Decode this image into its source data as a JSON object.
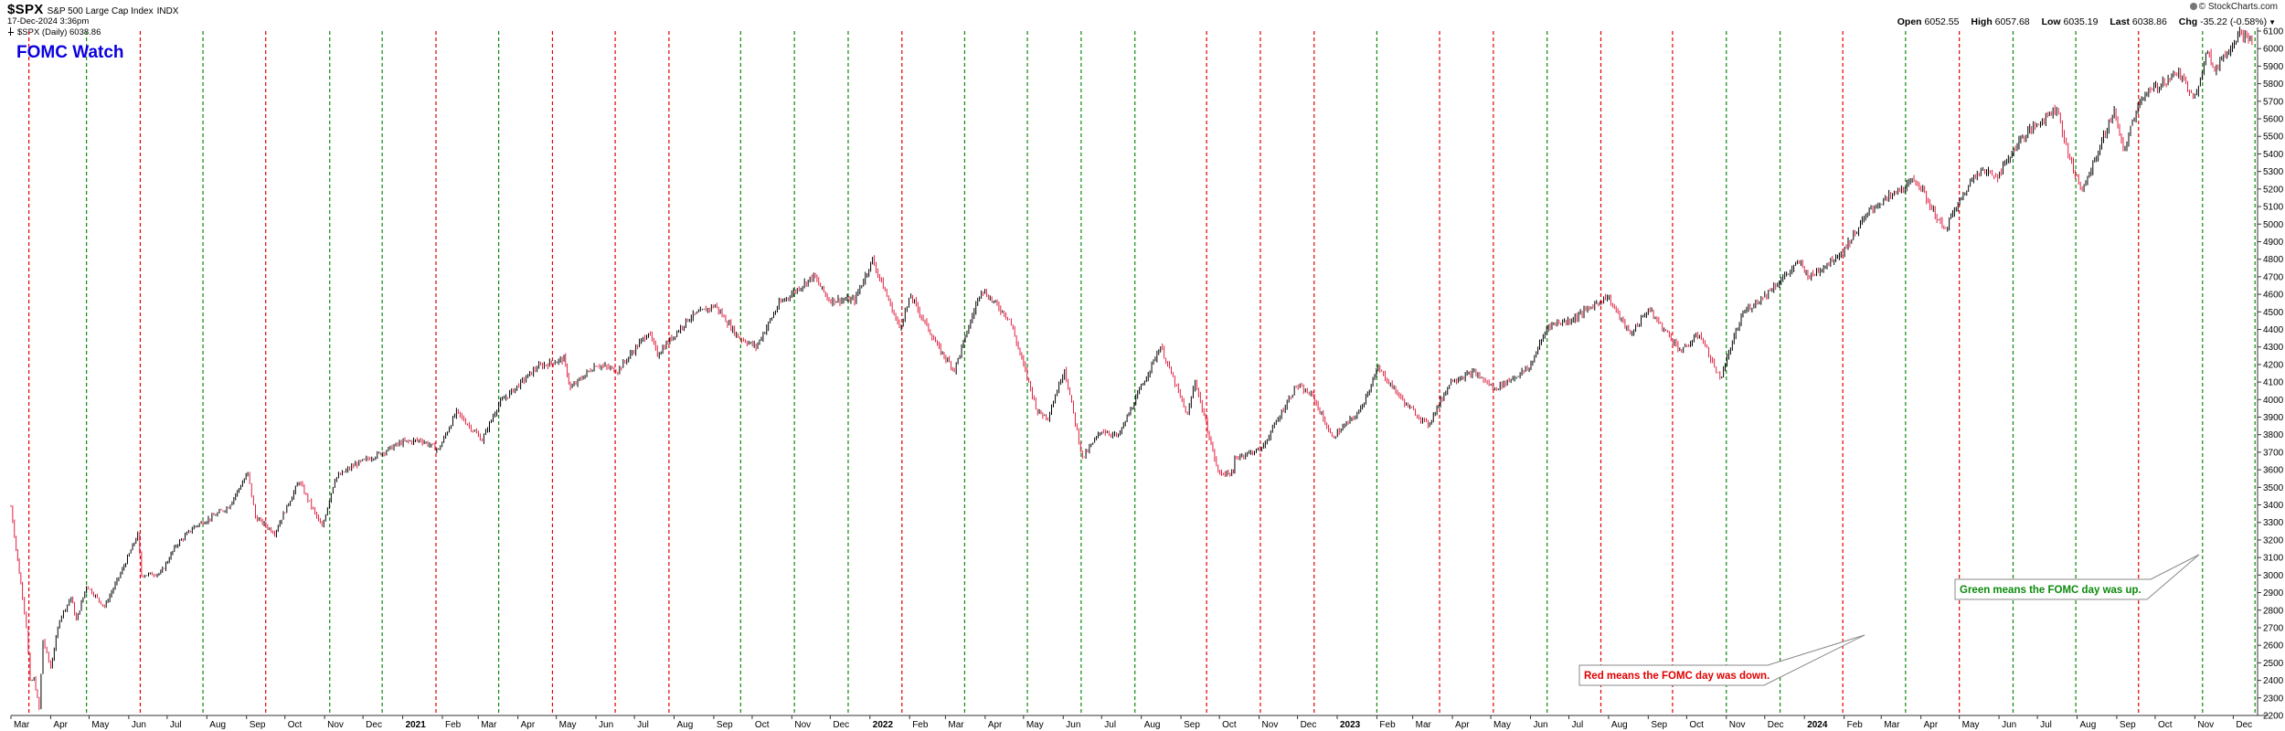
{
  "header": {
    "symbol": "$SPX",
    "description": "S&P 500 Large Cap Index",
    "exchange": "INDX",
    "datetime": "17-Dec-2024 3:36pm",
    "legend": "$SPX (Daily) 6038.86",
    "credit": "© StockCharts.com",
    "quote": {
      "open_label": "Open",
      "open": "6052.55",
      "high_label": "High",
      "high": "6057.68",
      "low_label": "Low",
      "low": "6035.19",
      "last_label": "Last",
      "last": "6038.86",
      "chg_label": "Chg",
      "chg": "-35.22 (-0.58%)",
      "chg_icon": "down-caret-icon"
    }
  },
  "colors": {
    "up": "#0b8a0b",
    "down": "#e00000",
    "title": "#0a00dd",
    "candle_up": "#000000",
    "candle_down": "#e02040"
  },
  "chart_data": {
    "type": "line",
    "title": "FOMC Watch",
    "ylim": [
      2200,
      6100
    ],
    "yticks": [
      2200,
      2300,
      2400,
      2500,
      2600,
      2700,
      2800,
      2900,
      3000,
      3100,
      3200,
      3300,
      3400,
      3500,
      3600,
      3700,
      3800,
      3900,
      4000,
      4100,
      4200,
      4300,
      4400,
      4500,
      4600,
      4700,
      4800,
      4900,
      5000,
      5100,
      5200,
      5300,
      5400,
      5500,
      5600,
      5700,
      5800,
      5900,
      6000,
      6100
    ],
    "xlim": [
      "2020-03-01",
      "2024-12-20"
    ],
    "xticks": [
      {
        "date": "2020-03-01",
        "label": "Mar",
        "major": false
      },
      {
        "date": "2020-04-01",
        "label": "Apr",
        "major": false
      },
      {
        "date": "2020-05-01",
        "label": "May",
        "major": false
      },
      {
        "date": "2020-06-01",
        "label": "Jun",
        "major": false
      },
      {
        "date": "2020-07-01",
        "label": "Jul",
        "major": false
      },
      {
        "date": "2020-08-01",
        "label": "Aug",
        "major": false
      },
      {
        "date": "2020-09-01",
        "label": "Sep",
        "major": false
      },
      {
        "date": "2020-10-01",
        "label": "Oct",
        "major": false
      },
      {
        "date": "2020-11-01",
        "label": "Nov",
        "major": false
      },
      {
        "date": "2020-12-01",
        "label": "Dec",
        "major": false
      },
      {
        "date": "2021-01-01",
        "label": "2021",
        "major": true
      },
      {
        "date": "2021-02-01",
        "label": "Feb",
        "major": false
      },
      {
        "date": "2021-03-01",
        "label": "Mar",
        "major": false
      },
      {
        "date": "2021-04-01",
        "label": "Apr",
        "major": false
      },
      {
        "date": "2021-05-01",
        "label": "May",
        "major": false
      },
      {
        "date": "2021-06-01",
        "label": "Jun",
        "major": false
      },
      {
        "date": "2021-07-01",
        "label": "Jul",
        "major": false
      },
      {
        "date": "2021-08-01",
        "label": "Aug",
        "major": false
      },
      {
        "date": "2021-09-01",
        "label": "Sep",
        "major": false
      },
      {
        "date": "2021-10-01",
        "label": "Oct",
        "major": false
      },
      {
        "date": "2021-11-01",
        "label": "Nov",
        "major": false
      },
      {
        "date": "2021-12-01",
        "label": "Dec",
        "major": false
      },
      {
        "date": "2022-01-01",
        "label": "2022",
        "major": true
      },
      {
        "date": "2022-02-01",
        "label": "Feb",
        "major": false
      },
      {
        "date": "2022-03-01",
        "label": "Mar",
        "major": false
      },
      {
        "date": "2022-04-01",
        "label": "Apr",
        "major": false
      },
      {
        "date": "2022-05-01",
        "label": "May",
        "major": false
      },
      {
        "date": "2022-06-01",
        "label": "Jun",
        "major": false
      },
      {
        "date": "2022-07-01",
        "label": "Jul",
        "major": false
      },
      {
        "date": "2022-08-01",
        "label": "Aug",
        "major": false
      },
      {
        "date": "2022-09-01",
        "label": "Sep",
        "major": false
      },
      {
        "date": "2022-10-01",
        "label": "Oct",
        "major": false
      },
      {
        "date": "2022-11-01",
        "label": "Nov",
        "major": false
      },
      {
        "date": "2022-12-01",
        "label": "Dec",
        "major": false
      },
      {
        "date": "2023-01-01",
        "label": "2023",
        "major": true
      },
      {
        "date": "2023-02-01",
        "label": "Feb",
        "major": false
      },
      {
        "date": "2023-03-01",
        "label": "Mar",
        "major": false
      },
      {
        "date": "2023-04-01",
        "label": "Apr",
        "major": false
      },
      {
        "date": "2023-05-01",
        "label": "May",
        "major": false
      },
      {
        "date": "2023-06-01",
        "label": "Jun",
        "major": false
      },
      {
        "date": "2023-07-01",
        "label": "Jul",
        "major": false
      },
      {
        "date": "2023-08-01",
        "label": "Aug",
        "major": false
      },
      {
        "date": "2023-09-01",
        "label": "Sep",
        "major": false
      },
      {
        "date": "2023-10-01",
        "label": "Oct",
        "major": false
      },
      {
        "date": "2023-11-01",
        "label": "Nov",
        "major": false
      },
      {
        "date": "2023-12-01",
        "label": "Dec",
        "major": false
      },
      {
        "date": "2024-01-01",
        "label": "2024",
        "major": true
      },
      {
        "date": "2024-02-01",
        "label": "Feb",
        "major": false
      },
      {
        "date": "2024-03-01",
        "label": "Mar",
        "major": false
      },
      {
        "date": "2024-04-01",
        "label": "Apr",
        "major": false
      },
      {
        "date": "2024-05-01",
        "label": "May",
        "major": false
      },
      {
        "date": "2024-06-01",
        "label": "Jun",
        "major": false
      },
      {
        "date": "2024-07-01",
        "label": "Jul",
        "major": false
      },
      {
        "date": "2024-08-01",
        "label": "Aug",
        "major": false
      },
      {
        "date": "2024-09-01",
        "label": "Sep",
        "major": false
      },
      {
        "date": "2024-10-01",
        "label": "Oct",
        "major": false
      },
      {
        "date": "2024-11-01",
        "label": "Nov",
        "major": false
      },
      {
        "date": "2024-12-01",
        "label": "Dec",
        "major": false
      }
    ],
    "fomc_days": [
      {
        "date": "2020-03-15",
        "result": "down"
      },
      {
        "date": "2020-04-29",
        "result": "up"
      },
      {
        "date": "2020-06-10",
        "result": "down"
      },
      {
        "date": "2020-07-29",
        "result": "up"
      },
      {
        "date": "2020-09-16",
        "result": "down"
      },
      {
        "date": "2020-11-05",
        "result": "up"
      },
      {
        "date": "2020-12-16",
        "result": "up"
      },
      {
        "date": "2021-01-27",
        "result": "down"
      },
      {
        "date": "2021-03-17",
        "result": "up"
      },
      {
        "date": "2021-04-28",
        "result": "down"
      },
      {
        "date": "2021-06-16",
        "result": "down"
      },
      {
        "date": "2021-07-28",
        "result": "down"
      },
      {
        "date": "2021-09-22",
        "result": "up"
      },
      {
        "date": "2021-11-03",
        "result": "up"
      },
      {
        "date": "2021-12-15",
        "result": "up"
      },
      {
        "date": "2022-01-26",
        "result": "down"
      },
      {
        "date": "2022-03-16",
        "result": "up"
      },
      {
        "date": "2022-05-04",
        "result": "up"
      },
      {
        "date": "2022-06-15",
        "result": "up"
      },
      {
        "date": "2022-07-27",
        "result": "up"
      },
      {
        "date": "2022-09-21",
        "result": "down"
      },
      {
        "date": "2022-11-02",
        "result": "down"
      },
      {
        "date": "2022-12-14",
        "result": "down"
      },
      {
        "date": "2023-02-01",
        "result": "up"
      },
      {
        "date": "2023-03-22",
        "result": "down"
      },
      {
        "date": "2023-05-03",
        "result": "down"
      },
      {
        "date": "2023-06-14",
        "result": "up"
      },
      {
        "date": "2023-07-26",
        "result": "down"
      },
      {
        "date": "2023-09-20",
        "result": "down"
      },
      {
        "date": "2023-11-01",
        "result": "up"
      },
      {
        "date": "2023-12-13",
        "result": "up"
      },
      {
        "date": "2024-01-31",
        "result": "down"
      },
      {
        "date": "2024-03-20",
        "result": "up"
      },
      {
        "date": "2024-05-01",
        "result": "down"
      },
      {
        "date": "2024-06-12",
        "result": "up"
      },
      {
        "date": "2024-07-31",
        "result": "up"
      },
      {
        "date": "2024-09-18",
        "result": "down"
      },
      {
        "date": "2024-11-07",
        "result": "up"
      },
      {
        "date": "2024-12-18",
        "result": "up"
      }
    ],
    "series": [
      {
        "values": [
          [
            "2020-03-01",
            3390
          ],
          [
            "2020-03-05",
            3150
          ],
          [
            "2020-03-10",
            2880
          ],
          [
            "2020-03-13",
            2710
          ],
          [
            "2020-03-16",
            2390
          ],
          [
            "2020-03-19",
            2410
          ],
          [
            "2020-03-23",
            2237
          ],
          [
            "2020-03-26",
            2630
          ],
          [
            "2020-04-01",
            2470
          ],
          [
            "2020-04-08",
            2750
          ],
          [
            "2020-04-17",
            2875
          ],
          [
            "2020-04-21",
            2740
          ],
          [
            "2020-04-29",
            2940
          ],
          [
            "2020-05-13",
            2820
          ],
          [
            "2020-05-27",
            3030
          ],
          [
            "2020-06-08",
            3230
          ],
          [
            "2020-06-11",
            3000
          ],
          [
            "2020-06-26",
            3010
          ],
          [
            "2020-07-08",
            3170
          ],
          [
            "2020-07-22",
            3275
          ],
          [
            "2020-08-05",
            3330
          ],
          [
            "2020-08-18",
            3390
          ],
          [
            "2020-09-02",
            3580
          ],
          [
            "2020-09-08",
            3330
          ],
          [
            "2020-09-23",
            3240
          ],
          [
            "2020-10-12",
            3535
          ],
          [
            "2020-10-30",
            3270
          ],
          [
            "2020-11-09",
            3550
          ],
          [
            "2020-11-25",
            3630
          ],
          [
            "2020-12-15",
            3695
          ],
          [
            "2020-12-31",
            3756
          ],
          [
            "2021-01-15",
            3770
          ],
          [
            "2021-01-29",
            3714
          ],
          [
            "2021-02-12",
            3930
          ],
          [
            "2021-03-04",
            3770
          ],
          [
            "2021-03-17",
            3975
          ],
          [
            "2021-04-16",
            4185
          ],
          [
            "2021-05-07",
            4232
          ],
          [
            "2021-05-12",
            4063
          ],
          [
            "2021-06-01",
            4200
          ],
          [
            "2021-06-18",
            4166
          ],
          [
            "2021-07-12",
            4385
          ],
          [
            "2021-07-19",
            4258
          ],
          [
            "2021-08-13",
            4468
          ],
          [
            "2021-09-02",
            4537
          ],
          [
            "2021-09-20",
            4358
          ],
          [
            "2021-10-04",
            4300
          ],
          [
            "2021-10-22",
            4545
          ],
          [
            "2021-11-18",
            4705
          ],
          [
            "2021-11-30",
            4567
          ],
          [
            "2021-12-20",
            4568
          ],
          [
            "2022-01-03",
            4797
          ],
          [
            "2022-01-24",
            4410
          ],
          [
            "2022-02-02",
            4589
          ],
          [
            "2022-02-24",
            4288
          ],
          [
            "2022-03-08",
            4170
          ],
          [
            "2022-03-29",
            4631
          ],
          [
            "2022-04-20",
            4460
          ],
          [
            "2022-05-12",
            3930
          ],
          [
            "2022-05-20",
            3901
          ],
          [
            "2022-06-02",
            4176
          ],
          [
            "2022-06-16",
            3666
          ],
          [
            "2022-07-01",
            3825
          ],
          [
            "2022-07-14",
            3790
          ],
          [
            "2022-08-16",
            4305
          ],
          [
            "2022-09-06",
            3908
          ],
          [
            "2022-09-12",
            4110
          ],
          [
            "2022-09-30",
            3585
          ],
          [
            "2022-10-12",
            3577
          ],
          [
            "2022-10-13",
            3669
          ],
          [
            "2022-11-03",
            3720
          ],
          [
            "2022-11-30",
            4080
          ],
          [
            "2022-12-13",
            4019
          ],
          [
            "2022-12-28",
            3783
          ],
          [
            "2023-01-18",
            3928
          ],
          [
            "2023-02-02",
            4179
          ],
          [
            "2023-02-24",
            3970
          ],
          [
            "2023-03-13",
            3855
          ],
          [
            "2023-03-31",
            4109
          ],
          [
            "2023-04-18",
            4154
          ],
          [
            "2023-05-04",
            4061
          ],
          [
            "2023-05-31",
            4180
          ],
          [
            "2023-06-15",
            4425
          ],
          [
            "2023-07-03",
            4455
          ],
          [
            "2023-07-31",
            4589
          ],
          [
            "2023-08-18",
            4370
          ],
          [
            "2023-09-01",
            4515
          ],
          [
            "2023-09-27",
            4274
          ],
          [
            "2023-10-11",
            4376
          ],
          [
            "2023-10-27",
            4117
          ],
          [
            "2023-11-14",
            4495
          ],
          [
            "2023-12-01",
            4595
          ],
          [
            "2023-12-28",
            4783
          ],
          [
            "2024-01-05",
            4697
          ],
          [
            "2024-01-31",
            4845
          ],
          [
            "2024-02-22",
            5087
          ],
          [
            "2024-03-28",
            5254
          ],
          [
            "2024-04-19",
            4967
          ],
          [
            "2024-05-15",
            5308
          ],
          [
            "2024-05-31",
            5278
          ],
          [
            "2024-06-18",
            5487
          ],
          [
            "2024-07-16",
            5667
          ],
          [
            "2024-07-25",
            5399
          ],
          [
            "2024-08-05",
            5186
          ],
          [
            "2024-08-30",
            5648
          ],
          [
            "2024-09-06",
            5408
          ],
          [
            "2024-09-19",
            5713
          ],
          [
            "2024-10-18",
            5864
          ],
          [
            "2024-11-01",
            5728
          ],
          [
            "2024-11-11",
            6001
          ],
          [
            "2024-11-15",
            5870
          ],
          [
            "2024-12-06",
            6090
          ],
          [
            "2024-12-17",
            6039
          ]
        ]
      }
    ],
    "annotations": [
      {
        "text": "Red means the FOMC day was down.",
        "color": "down"
      },
      {
        "text": "Green means the FOMC day was up.",
        "color": "up"
      }
    ]
  }
}
